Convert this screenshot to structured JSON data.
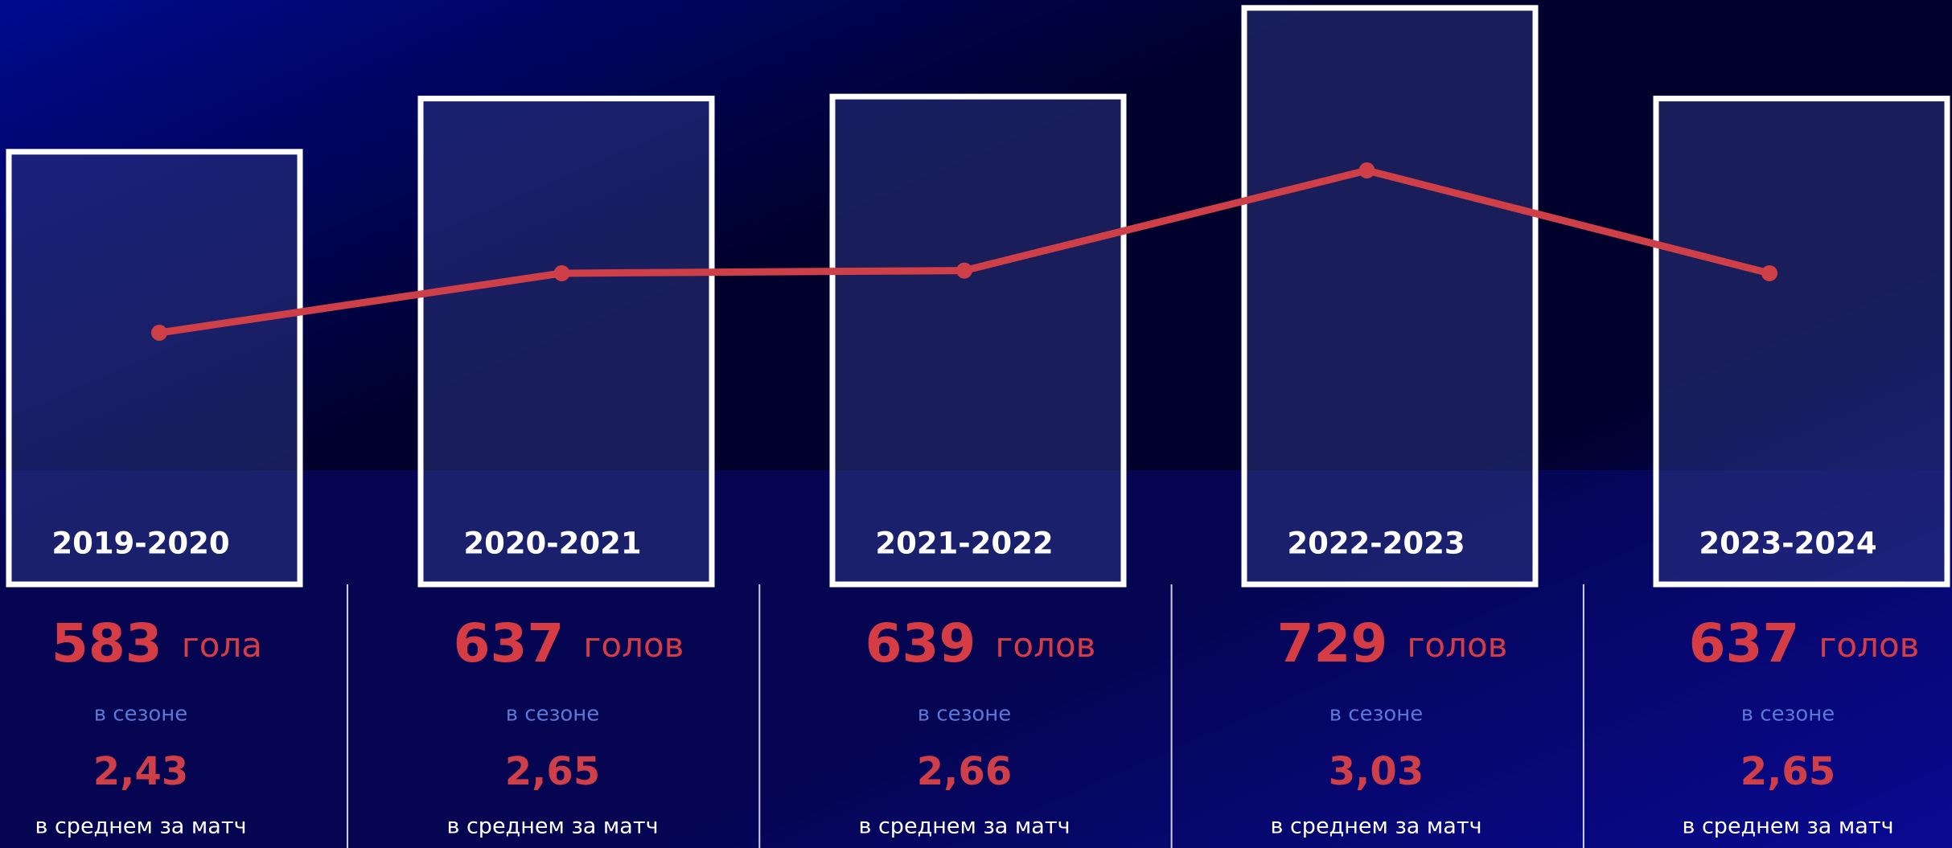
{
  "chart_data": {
    "type": "bar_line",
    "categories": [
      "2019-2020",
      "2020-2021",
      "2021-2022",
      "2022-2023",
      "2023-2024"
    ],
    "series": [
      {
        "name": "goals",
        "type": "bar",
        "color": "#d63c44",
        "values": [
          583,
          637,
          639,
          729,
          637
        ],
        "units": [
          "гола",
          "голов",
          "голов",
          "голов",
          "голов"
        ]
      },
      {
        "name": "average",
        "type": "line",
        "axis": "y2",
        "color": "#cf3f48",
        "values": [
          2.43,
          2.65,
          2.66,
          3.03,
          2.65
        ],
        "value_labels": [
          "2,43",
          "2,65",
          "2,66",
          "3,03",
          "2,65"
        ]
      }
    ],
    "season_label": "в сезоне",
    "average_label": "в среднем за матч",
    "ylim": [
      144,
      737
    ],
    "y2lim": [
      1.5,
      3.66
    ]
  }
}
